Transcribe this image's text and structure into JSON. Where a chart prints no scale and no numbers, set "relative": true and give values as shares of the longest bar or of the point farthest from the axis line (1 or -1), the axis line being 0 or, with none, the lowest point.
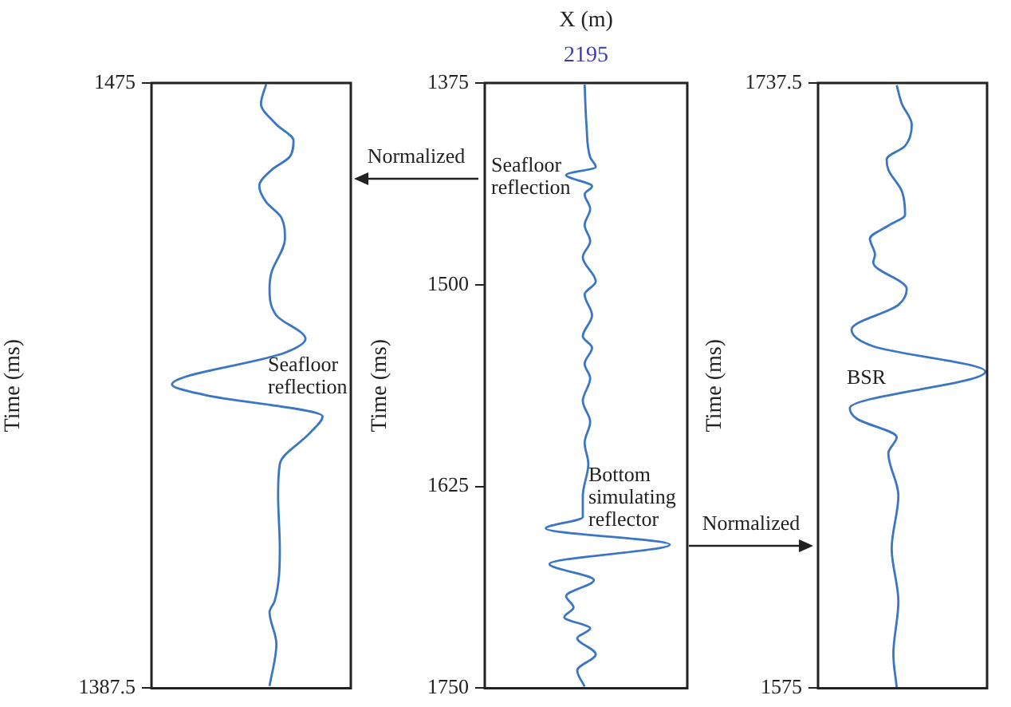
{
  "chart_data": [
    {
      "type": "line",
      "orientation": "horizontal",
      "relative": true,
      "ylabel": "Time (ms)",
      "ylim": [
        1387.5,
        1475
      ],
      "yticks": [
        1475,
        1387.5
      ],
      "color": "#3a76c4",
      "annotations": [
        "Seafloor reflection"
      ],
      "x": [
        1474.8,
        1472.0,
        1469.0,
        1466.7,
        1464.4,
        1462.4,
        1460.1,
        1457.8,
        1455.5,
        1452.5,
        1447.5,
        1445.2,
        1441.4,
        1438.0,
        1436.0,
        1431.4,
        1429.9,
        1426.8,
        1424.5,
        1419.9,
        1415.4,
        1407.7,
        1400.1,
        1398.5,
        1393.9,
        1387.8
      ],
      "values": [
        0.67,
        0.64,
        0.73,
        0.83,
        0.81,
        0.7,
        0.63,
        0.67,
        0.76,
        0.78,
        0.7,
        0.69,
        0.73,
        0.9,
        0.78,
        0.12,
        0.31,
        1,
        0.93,
        0.75,
        0.74,
        0.75,
        0.72,
        0.69,
        0.73,
        0.69
      ]
    },
    {
      "type": "line",
      "orientation": "horizontal",
      "relative": true,
      "title": "X (m)",
      "subtitle": "2195",
      "ylabel": "Time (ms)",
      "ylim": [
        1750,
        1375
      ],
      "yticks": [
        1375,
        1500,
        1625,
        1750
      ],
      "color": "#3a76c4",
      "annotations": [
        "Seafloor reflection",
        "Bottom simulating reflector",
        "Normalized",
        "Normalized"
      ],
      "x": [
        1376,
        1401,
        1421,
        1427,
        1432,
        1439,
        1444,
        1453,
        1463,
        1473,
        1483,
        1498,
        1506,
        1519,
        1532,
        1539,
        1549,
        1558,
        1572,
        1585,
        1598,
        1611,
        1631,
        1644,
        1651,
        1661,
        1673,
        1683,
        1693,
        1700,
        1706,
        1713,
        1719,
        1729,
        1739,
        1749
      ],
      "values": [
        0.54,
        0.55,
        0.57,
        0.6,
        0.44,
        0.58,
        0.54,
        0.57,
        0.54,
        0.57,
        0.53,
        0.6,
        0.54,
        0.58,
        0.53,
        0.58,
        0.54,
        0.57,
        0.53,
        0.57,
        0.54,
        0.56,
        0.53,
        0.53,
        0.33,
        1,
        0.35,
        0.59,
        0.44,
        0.48,
        0.43,
        0.57,
        0.5,
        0.6,
        0.5,
        0.54
      ]
    },
    {
      "type": "line",
      "orientation": "horizontal",
      "relative": true,
      "ylabel": "Time (ms)",
      "ylim": [
        1575,
        1737.5
      ],
      "yticks": [
        1737.5,
        1575
      ],
      "color": "#3a76c4",
      "annotations": [
        "BSR"
      ],
      "x": [
        1736.9,
        1732.0,
        1726.3,
        1720.6,
        1717.0,
        1714.2,
        1708.5,
        1702.1,
        1699.2,
        1695.7,
        1691.4,
        1689.3,
        1682.2,
        1677.9,
        1671.3,
        1666.8,
        1660.0,
        1650.2,
        1647.4,
        1642.4,
        1638.1,
        1626.7,
        1612.5,
        1598.3,
        1584.1,
        1575.2
      ],
      "values": [
        0.47,
        0.5,
        0.56,
        0.52,
        0.41,
        0.42,
        0.5,
        0.52,
        0.42,
        0.31,
        0.34,
        0.33,
        0.53,
        0.48,
        0.2,
        0.33,
        1,
        0.19,
        0.23,
        0.47,
        0.42,
        0.48,
        0.44,
        0.48,
        0.45,
        0.47
      ]
    }
  ]
}
